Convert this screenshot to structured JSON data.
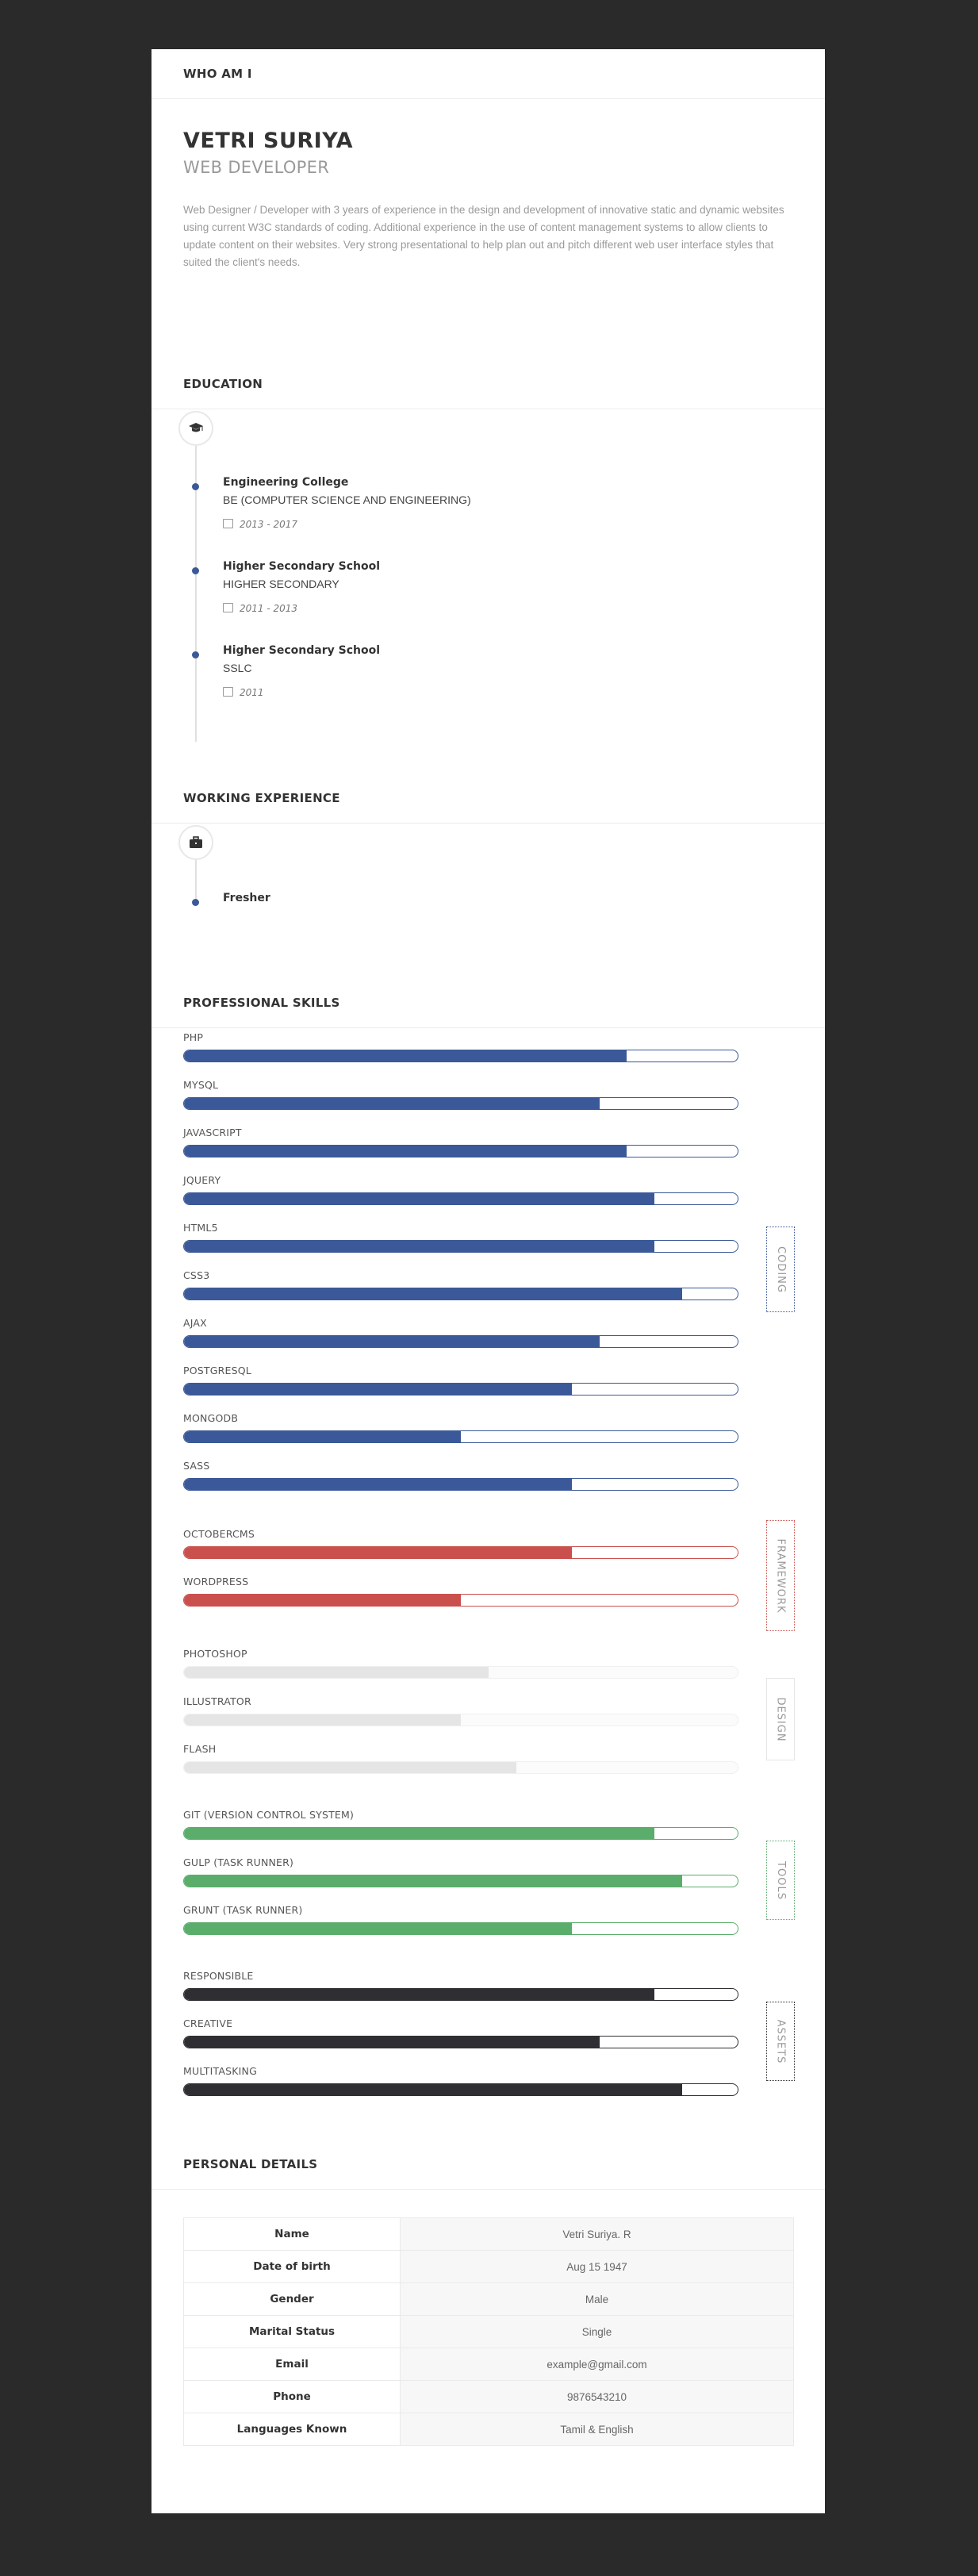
{
  "sections": {
    "who": "WHO AM I",
    "education": "EDUCATION",
    "experience": "WORKING EXPERIENCE",
    "skills": "PROFESSIONAL SKILLS",
    "personal": "PERSONAL DETAILS"
  },
  "profile": {
    "name": "VETRI SURIYA",
    "role": "WEB DEVELOPER",
    "bio": "Web Designer / Developer with 3 years of experience in the design and development of innovative static and dynamic websites using current W3C standards of coding. Additional experience in the use of content management systems to allow clients to update content on their websites. Very strong presentational to help plan out and pitch different web user interface styles that suited the client's needs."
  },
  "education": [
    {
      "title": "Engineering College",
      "subtitle": "BE (COMPUTER SCIENCE AND ENGINEERING)",
      "date": "2013 - 2017"
    },
    {
      "title": "Higher Secondary School",
      "subtitle": "HIGHER SECONDARY",
      "date": "2011 - 2013"
    },
    {
      "title": "Higher Secondary School",
      "subtitle": "SSLC",
      "date": "2011"
    }
  ],
  "experience": [
    {
      "title": "Fresher"
    }
  ],
  "icons": {
    "education": "graduation-cap-icon",
    "experience": "briefcase-icon",
    "date": "calendar-icon"
  },
  "skill_groups": [
    {
      "tag": "CODING",
      "color": "#3b5998",
      "skills": [
        {
          "label": "PHP",
          "level": 0.8
        },
        {
          "label": "MYSQL",
          "level": 0.75
        },
        {
          "label": "JAVASCRIPT",
          "level": 0.8
        },
        {
          "label": "JQUERY",
          "level": 0.85
        },
        {
          "label": "HTML5",
          "level": 0.85
        },
        {
          "label": "CSS3",
          "level": 0.9
        },
        {
          "label": "AJAX",
          "level": 0.75
        },
        {
          "label": "POSTGRESQL",
          "level": 0.7
        },
        {
          "label": "MONGODB",
          "level": 0.5
        },
        {
          "label": "SASS",
          "level": 0.7
        }
      ]
    },
    {
      "tag": "FRAMEWORK",
      "color": "#c9504d",
      "skills": [
        {
          "label": "OCTOBERCMS",
          "level": 0.7
        },
        {
          "label": "WORDPRESS",
          "level": 0.5
        }
      ]
    },
    {
      "tag": "DESIGN",
      "color": "#e5e5e5",
      "skills": [
        {
          "label": "PHOTOSHOP",
          "level": 0.55
        },
        {
          "label": "ILLUSTRATOR",
          "level": 0.5
        },
        {
          "label": "FLASH",
          "level": 0.6
        }
      ]
    },
    {
      "tag": "TOOLS",
      "color": "#5aad6a",
      "skills": [
        {
          "label": "GIT (VERSION CONTROL SYSTEM)",
          "level": 0.85
        },
        {
          "label": "GULP (TASK RUNNER)",
          "level": 0.9
        },
        {
          "label": "GRUNT (TASK RUNNER)",
          "level": 0.7
        }
      ]
    },
    {
      "tag": "ASSETS",
      "color": "#2f2f33",
      "skills": [
        {
          "label": "RESPONSIBLE",
          "level": 0.85
        },
        {
          "label": "CREATIVE",
          "level": 0.75
        },
        {
          "label": "MULTITASKING",
          "level": 0.9
        }
      ]
    }
  ],
  "personal": [
    {
      "key": "Name",
      "value": "Vetri Suriya. R"
    },
    {
      "key": "Date of birth",
      "value": "Aug 15 1947"
    },
    {
      "key": "Gender",
      "value": "Male"
    },
    {
      "key": "Marital Status",
      "value": "Single"
    },
    {
      "key": "Email",
      "value": "example@gmail.com"
    },
    {
      "key": "Phone",
      "value": "9876543210"
    },
    {
      "key": "Languages Known",
      "value": "Tamil & English"
    }
  ]
}
